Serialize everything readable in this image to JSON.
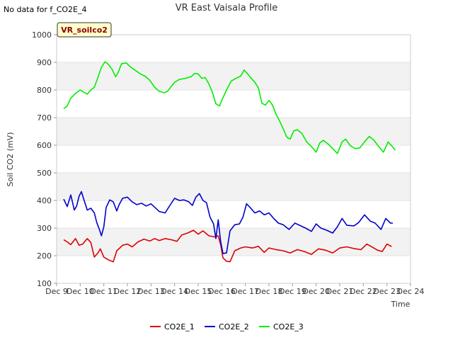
{
  "no_data_note": "No data for f_CO2E_4",
  "badge_label": "VR_soilco2",
  "chart_data": {
    "type": "line",
    "title": "VR East Vaisala Profile",
    "xlabel": "Time",
    "ylabel": "Soil CO2 (mV)",
    "xlim": [
      9,
      24
    ],
    "ylim": [
      100,
      1000
    ],
    "x_ticks": [
      {
        "value": 9,
        "label": "Dec 9"
      },
      {
        "value": 10,
        "label": "Dec 10"
      },
      {
        "value": 11,
        "label": "Dec 11"
      },
      {
        "value": 12,
        "label": "Dec 12"
      },
      {
        "value": 13,
        "label": "Dec 13"
      },
      {
        "value": 14,
        "label": "Dec 14"
      },
      {
        "value": 15,
        "label": "Dec 15"
      },
      {
        "value": 16,
        "label": "Dec 16"
      },
      {
        "value": 17,
        "label": "Dec 17"
      },
      {
        "value": 18,
        "label": "Dec 18"
      },
      {
        "value": 19,
        "label": "Dec 19"
      },
      {
        "value": 20,
        "label": "Dec 20"
      },
      {
        "value": 21,
        "label": "Dec 21"
      },
      {
        "value": 22,
        "label": "Dec 22"
      },
      {
        "value": 23,
        "label": "Dec 23"
      },
      {
        "value": 24,
        "label": "Dec 24"
      }
    ],
    "y_ticks": [
      100,
      200,
      300,
      400,
      500,
      600,
      700,
      800,
      900,
      1000
    ],
    "grid": true,
    "legend_position": "bottom",
    "series": [
      {
        "name": "CO2E_1",
        "color": "#dd0000",
        "points": [
          [
            9.3,
            258
          ],
          [
            9.45,
            250
          ],
          [
            9.6,
            240
          ],
          [
            9.8,
            262
          ],
          [
            9.95,
            238
          ],
          [
            10.1,
            242
          ],
          [
            10.3,
            262
          ],
          [
            10.45,
            248
          ],
          [
            10.6,
            195
          ],
          [
            10.75,
            210
          ],
          [
            10.85,
            225
          ],
          [
            11.0,
            195
          ],
          [
            11.2,
            185
          ],
          [
            11.4,
            178
          ],
          [
            11.55,
            218
          ],
          [
            11.8,
            238
          ],
          [
            12.0,
            242
          ],
          [
            12.2,
            232
          ],
          [
            12.45,
            250
          ],
          [
            12.7,
            260
          ],
          [
            12.95,
            253
          ],
          [
            13.15,
            262
          ],
          [
            13.35,
            255
          ],
          [
            13.6,
            262
          ],
          [
            13.85,
            258
          ],
          [
            14.1,
            252
          ],
          [
            14.3,
            275
          ],
          [
            14.55,
            282
          ],
          [
            14.8,
            292
          ],
          [
            15.0,
            278
          ],
          [
            15.2,
            290
          ],
          [
            15.45,
            272
          ],
          [
            15.7,
            268
          ],
          [
            15.85,
            272
          ],
          [
            15.95,
            240
          ],
          [
            16.05,
            192
          ],
          [
            16.2,
            180
          ],
          [
            16.35,
            178
          ],
          [
            16.55,
            218
          ],
          [
            16.8,
            228
          ],
          [
            17.0,
            232
          ],
          [
            17.3,
            228
          ],
          [
            17.55,
            234
          ],
          [
            17.8,
            212
          ],
          [
            18.0,
            228
          ],
          [
            18.3,
            222
          ],
          [
            18.6,
            218
          ],
          [
            18.9,
            210
          ],
          [
            19.2,
            222
          ],
          [
            19.5,
            215
          ],
          [
            19.8,
            205
          ],
          [
            20.1,
            225
          ],
          [
            20.4,
            220
          ],
          [
            20.7,
            210
          ],
          [
            21.0,
            228
          ],
          [
            21.3,
            232
          ],
          [
            21.6,
            226
          ],
          [
            21.9,
            222
          ],
          [
            22.15,
            242
          ],
          [
            22.4,
            230
          ],
          [
            22.6,
            220
          ],
          [
            22.8,
            215
          ],
          [
            23.0,
            242
          ],
          [
            23.2,
            233
          ]
        ]
      },
      {
        "name": "CO2E_2",
        "color": "#0000cc",
        "points": [
          [
            9.3,
            405
          ],
          [
            9.45,
            378
          ],
          [
            9.6,
            420
          ],
          [
            9.75,
            365
          ],
          [
            9.85,
            380
          ],
          [
            9.95,
            415
          ],
          [
            10.05,
            432
          ],
          [
            10.15,
            405
          ],
          [
            10.3,
            365
          ],
          [
            10.45,
            372
          ],
          [
            10.6,
            355
          ],
          [
            10.7,
            320
          ],
          [
            10.8,
            298
          ],
          [
            10.9,
            272
          ],
          [
            11.0,
            305
          ],
          [
            11.1,
            375
          ],
          [
            11.25,
            402
          ],
          [
            11.4,
            395
          ],
          [
            11.55,
            362
          ],
          [
            11.65,
            385
          ],
          [
            11.8,
            408
          ],
          [
            12.0,
            412
          ],
          [
            12.2,
            395
          ],
          [
            12.4,
            385
          ],
          [
            12.6,
            390
          ],
          [
            12.8,
            380
          ],
          [
            13.0,
            388
          ],
          [
            13.2,
            372
          ],
          [
            13.35,
            360
          ],
          [
            13.6,
            355
          ],
          [
            13.8,
            382
          ],
          [
            14.0,
            408
          ],
          [
            14.2,
            400
          ],
          [
            14.4,
            402
          ],
          [
            14.6,
            395
          ],
          [
            14.75,
            382
          ],
          [
            14.9,
            412
          ],
          [
            15.05,
            425
          ],
          [
            15.2,
            400
          ],
          [
            15.35,
            392
          ],
          [
            15.5,
            340
          ],
          [
            15.65,
            315
          ],
          [
            15.75,
            262
          ],
          [
            15.85,
            330
          ],
          [
            15.95,
            252
          ],
          [
            16.05,
            208
          ],
          [
            16.2,
            210
          ],
          [
            16.35,
            290
          ],
          [
            16.55,
            312
          ],
          [
            16.75,
            315
          ],
          [
            16.9,
            340
          ],
          [
            17.05,
            388
          ],
          [
            17.2,
            375
          ],
          [
            17.4,
            355
          ],
          [
            17.6,
            362
          ],
          [
            17.8,
            348
          ],
          [
            18.0,
            355
          ],
          [
            18.2,
            335
          ],
          [
            18.4,
            318
          ],
          [
            18.6,
            312
          ],
          [
            18.85,
            295
          ],
          [
            19.1,
            318
          ],
          [
            19.3,
            310
          ],
          [
            19.55,
            300
          ],
          [
            19.8,
            288
          ],
          [
            20.0,
            315
          ],
          [
            20.2,
            300
          ],
          [
            20.45,
            292
          ],
          [
            20.7,
            282
          ],
          [
            20.9,
            305
          ],
          [
            21.1,
            335
          ],
          [
            21.3,
            310
          ],
          [
            21.6,
            308
          ],
          [
            21.8,
            320
          ],
          [
            22.05,
            348
          ],
          [
            22.3,
            325
          ],
          [
            22.5,
            318
          ],
          [
            22.75,
            295
          ],
          [
            22.95,
            335
          ],
          [
            23.15,
            318
          ],
          [
            23.25,
            318
          ]
        ]
      },
      {
        "name": "CO2E_3",
        "color": "#00ee00",
        "points": [
          [
            9.3,
            732
          ],
          [
            9.45,
            742
          ],
          [
            9.6,
            770
          ],
          [
            9.8,
            788
          ],
          [
            10.0,
            800
          ],
          [
            10.15,
            792
          ],
          [
            10.3,
            785
          ],
          [
            10.45,
            800
          ],
          [
            10.6,
            810
          ],
          [
            10.75,
            845
          ],
          [
            10.9,
            882
          ],
          [
            11.05,
            902
          ],
          [
            11.2,
            892
          ],
          [
            11.35,
            875
          ],
          [
            11.5,
            848
          ],
          [
            11.6,
            862
          ],
          [
            11.75,
            895
          ],
          [
            11.95,
            898
          ],
          [
            12.15,
            882
          ],
          [
            12.35,
            870
          ],
          [
            12.55,
            858
          ],
          [
            12.75,
            850
          ],
          [
            12.95,
            835
          ],
          [
            13.15,
            810
          ],
          [
            13.35,
            795
          ],
          [
            13.55,
            790
          ],
          [
            13.7,
            795
          ],
          [
            13.85,
            812
          ],
          [
            14.0,
            828
          ],
          [
            14.2,
            838
          ],
          [
            14.45,
            842
          ],
          [
            14.7,
            848
          ],
          [
            14.85,
            860
          ],
          [
            15.0,
            858
          ],
          [
            15.15,
            842
          ],
          [
            15.3,
            845
          ],
          [
            15.45,
            822
          ],
          [
            15.6,
            792
          ],
          [
            15.75,
            750
          ],
          [
            15.9,
            742
          ],
          [
            16.05,
            772
          ],
          [
            16.2,
            800
          ],
          [
            16.4,
            832
          ],
          [
            16.6,
            842
          ],
          [
            16.8,
            850
          ],
          [
            16.95,
            872
          ],
          [
            17.1,
            858
          ],
          [
            17.25,
            842
          ],
          [
            17.4,
            828
          ],
          [
            17.55,
            808
          ],
          [
            17.7,
            752
          ],
          [
            17.85,
            745
          ],
          [
            18.0,
            762
          ],
          [
            18.15,
            745
          ],
          [
            18.3,
            712
          ],
          [
            18.45,
            688
          ],
          [
            18.6,
            660
          ],
          [
            18.75,
            630
          ],
          [
            18.9,
            622
          ],
          [
            19.05,
            652
          ],
          [
            19.2,
            656
          ],
          [
            19.4,
            642
          ],
          [
            19.6,
            612
          ],
          [
            19.8,
            595
          ],
          [
            20.0,
            575
          ],
          [
            20.15,
            608
          ],
          [
            20.3,
            618
          ],
          [
            20.5,
            605
          ],
          [
            20.7,
            588
          ],
          [
            20.9,
            570
          ],
          [
            21.1,
            612
          ],
          [
            21.25,
            622
          ],
          [
            21.45,
            598
          ],
          [
            21.65,
            588
          ],
          [
            21.85,
            590
          ],
          [
            22.05,
            612
          ],
          [
            22.25,
            632
          ],
          [
            22.45,
            618
          ],
          [
            22.65,
            595
          ],
          [
            22.85,
            575
          ],
          [
            23.05,
            612
          ],
          [
            23.2,
            598
          ],
          [
            23.35,
            582
          ]
        ]
      }
    ]
  }
}
